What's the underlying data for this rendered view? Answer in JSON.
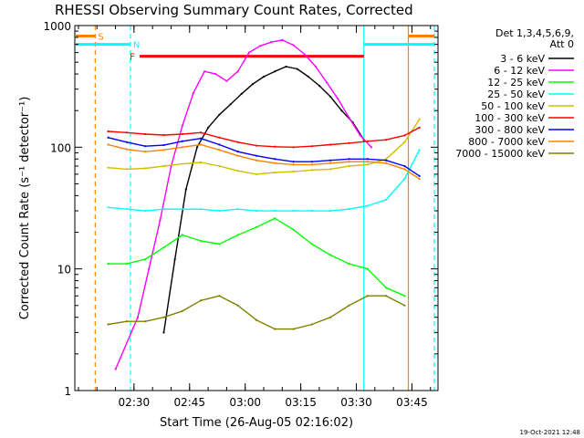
{
  "chart_data": {
    "type": "line",
    "title": "RHESSI Observing Summary Count Rates, Corrected",
    "xlabel": "Start Time (26-Aug-05 02:16:02)",
    "ylabel": "Corrected Count Rate (s⁻¹ detector⁻¹)",
    "yscale": "log",
    "ylim": [
      1,
      1000
    ],
    "xlim_minutes": [
      -2.0,
      96.0
    ],
    "x_unit": "minutes after 02:16:02 UT",
    "xticks": [
      {
        "label": "02:30",
        "t": 13.97
      },
      {
        "label": "02:45",
        "t": 28.97
      },
      {
        "label": "03:00",
        "t": 43.97
      },
      {
        "label": "03:15",
        "t": 58.97
      },
      {
        "label": "03:30",
        "t": 73.97
      },
      {
        "label": "03:45",
        "t": 88.97
      }
    ],
    "yticks": [
      {
        "label": "1",
        "v": 1
      },
      {
        "label": "10",
        "v": 10
      },
      {
        "label": "100",
        "v": 100
      },
      {
        "label": "1000",
        "v": 1000
      }
    ],
    "legend_title": "Det 1,3,4,5,6,9,",
    "legend_subtitle": "Att 0",
    "legend_position": "top-right, outside plot",
    "series": [
      {
        "name": "3 - 6 keV",
        "color": "#000000",
        "x": [
          22,
          25,
          28,
          31,
          34,
          37,
          40,
          43,
          46,
          49,
          52,
          55,
          58,
          61,
          64,
          67,
          70,
          73,
          76
        ],
        "y": [
          3,
          12,
          45,
          100,
          145,
          185,
          225,
          275,
          330,
          380,
          420,
          460,
          440,
          380,
          320,
          260,
          200,
          160,
          115
        ]
      },
      {
        "name": "6 - 12 keV",
        "color": "#ff00ff",
        "x": [
          9,
          15,
          18,
          21,
          24,
          27,
          30,
          33,
          36,
          39,
          42,
          45,
          48,
          51,
          54,
          57,
          60,
          63,
          66,
          69,
          72,
          75,
          78
        ],
        "y": [
          1.5,
          4,
          10,
          25,
          70,
          150,
          280,
          420,
          400,
          350,
          420,
          600,
          680,
          730,
          760,
          690,
          580,
          460,
          340,
          250,
          175,
          125,
          100
        ]
      },
      {
        "name": "12 - 25 keV",
        "color": "#00ff00",
        "x": [
          7,
          12,
          17,
          22,
          27,
          32,
          37,
          42,
          47,
          52,
          57,
          62,
          67,
          72,
          77,
          82,
          87
        ],
        "y": [
          11,
          11,
          12,
          15,
          19,
          17,
          16,
          19,
          22,
          26,
          21,
          16,
          13,
          11,
          10,
          7,
          6
        ]
      },
      {
        "name": "25 - 50 keV",
        "color": "#00ffff",
        "x": [
          7,
          12,
          17,
          22,
          27,
          32,
          37,
          42,
          47,
          52,
          57,
          62,
          67,
          72,
          77,
          82,
          87,
          91
        ],
        "y": [
          32,
          31,
          30,
          31,
          31,
          31,
          30,
          31,
          30,
          30,
          30,
          30,
          30,
          31,
          33,
          37,
          55,
          95
        ]
      },
      {
        "name": "50 - 100 keV",
        "color": "#d0c000",
        "x": [
          7,
          12,
          17,
          22,
          27,
          32,
          37,
          42,
          47,
          52,
          57,
          62,
          67,
          72,
          77,
          82,
          87,
          91
        ],
        "y": [
          68,
          66,
          67,
          70,
          73,
          75,
          70,
          64,
          60,
          62,
          63,
          65,
          66,
          70,
          72,
          80,
          110,
          170
        ]
      },
      {
        "name": "100 - 300 keV",
        "color": "#ff0000",
        "x": [
          7,
          12,
          17,
          22,
          27,
          32,
          37,
          42,
          47,
          52,
          57,
          62,
          67,
          72,
          77,
          82,
          87,
          91
        ],
        "y": [
          135,
          132,
          128,
          126,
          128,
          132,
          120,
          110,
          103,
          101,
          100,
          102,
          105,
          108,
          112,
          115,
          125,
          145
        ]
      },
      {
        "name": "300 - 800 keV",
        "color": "#0000ff",
        "x": [
          7,
          12,
          17,
          22,
          27,
          32,
          37,
          42,
          47,
          52,
          57,
          62,
          67,
          72,
          77,
          82,
          87,
          91
        ],
        "y": [
          120,
          110,
          102,
          104,
          112,
          118,
          105,
          92,
          85,
          80,
          76,
          76,
          78,
          80,
          80,
          78,
          70,
          58
        ]
      },
      {
        "name": "800 - 7000 keV",
        "color": "#ff8000",
        "x": [
          7,
          12,
          17,
          22,
          27,
          32,
          37,
          42,
          47,
          52,
          57,
          62,
          67,
          72,
          77,
          82,
          87,
          91
        ],
        "y": [
          105,
          96,
          92,
          95,
          100,
          105,
          95,
          85,
          78,
          74,
          72,
          72,
          74,
          76,
          76,
          74,
          66,
          55
        ]
      },
      {
        "name": "7000 - 15000 keV",
        "color": "#808000",
        "x": [
          7,
          12,
          17,
          22,
          27,
          32,
          37,
          42,
          47,
          52,
          57,
          62,
          67,
          72,
          77,
          82,
          87
        ],
        "y": [
          3.5,
          3.7,
          3.7,
          4,
          4.5,
          5.5,
          6,
          5,
          3.8,
          3.2,
          3.2,
          3.5,
          4,
          5,
          6,
          6,
          5
        ]
      }
    ],
    "flag_bars": [
      {
        "label": "S",
        "color": "#ff8000",
        "x_start": -2,
        "x_end": 3.5,
        "y": 820
      },
      {
        "label": "",
        "color": "#ff8000",
        "x_start": 88,
        "x_end": 95,
        "y": 820
      },
      {
        "label": "N",
        "color": "#00ffff",
        "x_start": -2,
        "x_end": 13,
        "y": 700
      },
      {
        "label": "",
        "color": "#00ffff",
        "x_start": 76,
        "x_end": 95,
        "y": 700
      },
      {
        "label": "F",
        "color": "#ff0000",
        "x_start": 15.5,
        "x_end": 76,
        "y": 560
      }
    ],
    "markers": [
      {
        "color": "#ff8000",
        "style": "dashed",
        "t": 3.5
      },
      {
        "color": "#00ffff",
        "style": "dashed",
        "t": 13
      },
      {
        "color": "#00ffff",
        "style": "solid",
        "t": 76
      },
      {
        "color": "#ff8000",
        "style": "solid",
        "t": 88
      },
      {
        "color": "#00ffff",
        "style": "dashed",
        "t": 95
      }
    ],
    "grid": false
  },
  "footer": {
    "timestamp": "19-Oct-2021 12:48"
  }
}
